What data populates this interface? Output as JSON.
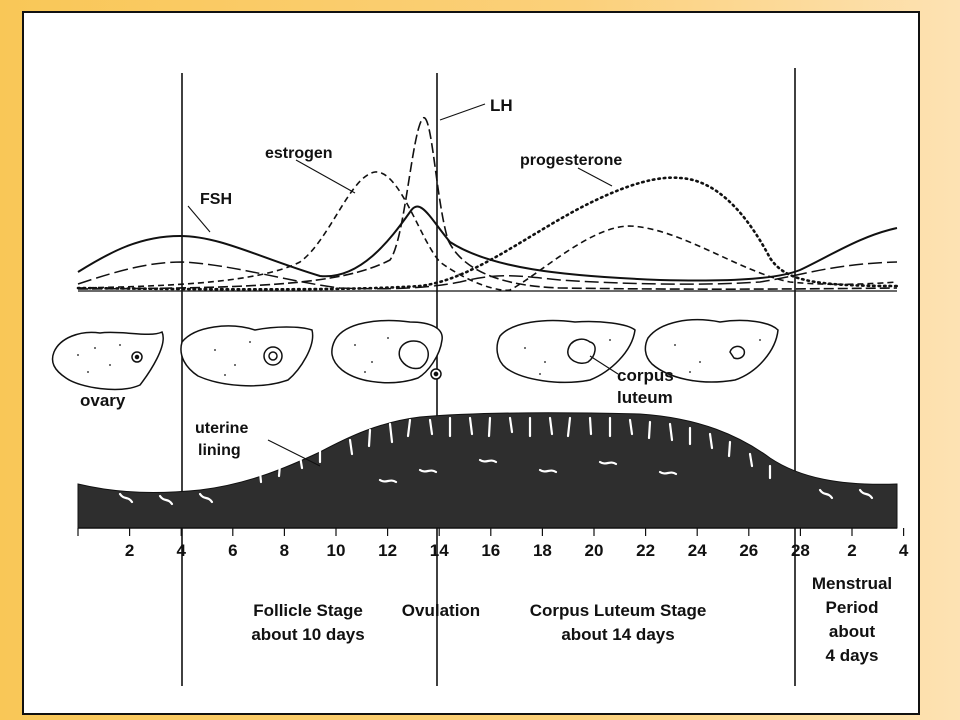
{
  "colors": {
    "frame_bg": "#f9c757",
    "ink": "#111111",
    "lining": "#2e2e2e"
  },
  "hormones": {
    "lh": "LH",
    "estrogen": "estrogen",
    "progesterone": "progesterone",
    "fsh": "FSH"
  },
  "anatomy": {
    "ovary": "ovary",
    "corpus_luteum_1": "corpus",
    "corpus_luteum_2": "luteum",
    "uterine_1": "uterine",
    "uterine_2": "lining"
  },
  "axis": {
    "ticks": [
      "2",
      "4",
      "6",
      "8",
      "10",
      "12",
      "14",
      "16",
      "18",
      "20",
      "22",
      "24",
      "26",
      "28",
      "2",
      "4"
    ]
  },
  "stages": {
    "follicle_1": "Follicle Stage",
    "follicle_2": "about 10 days",
    "ovulation": "Ovulation",
    "luteum_1": "Corpus Luteum Stage",
    "luteum_2": "about 14 days",
    "menstrual_1": "Menstrual",
    "menstrual_2": "Period",
    "menstrual_3": "about",
    "menstrual_4": "4 days"
  }
}
